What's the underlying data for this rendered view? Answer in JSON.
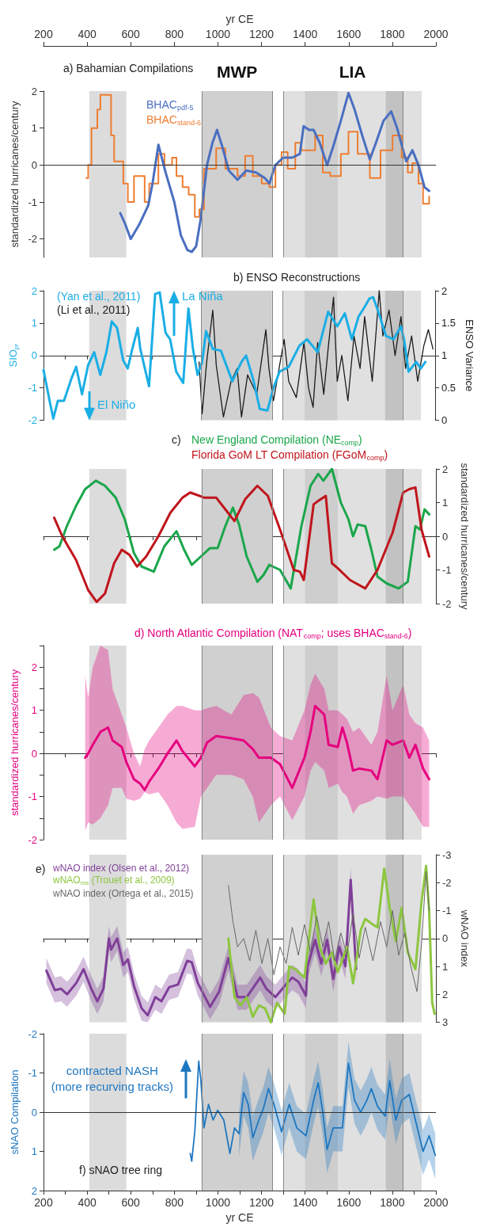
{
  "chart_data": [
    {
      "type": "line",
      "title": "a) Bahamian Compilations",
      "xlim": [
        200,
        2000
      ],
      "xticks": [
        200,
        400,
        600,
        800,
        1000,
        1200,
        1400,
        1600,
        1800,
        2000
      ],
      "xlabel": "yr CE",
      "ylim": [
        -2.5,
        2
      ],
      "yticks": [
        -2,
        -1,
        0,
        1,
        2
      ],
      "ylabel": "standardized hurricanes/century",
      "legend": "top left",
      "marker": "none",
      "bands": [
        {
          "axis": "x",
          "from": 410,
          "to": 580,
          "color": "#dcdcdc"
        },
        {
          "axis": "x",
          "from": 925,
          "to": 1250,
          "label": "MWP",
          "color": "#d0d0d0"
        },
        {
          "axis": "x",
          "from": 1300,
          "to": 1935,
          "label": "LIA",
          "color": "#e0e0e0"
        },
        {
          "axis": "x",
          "from": 1400,
          "to": 1550,
          "color": "#cecece"
        },
        {
          "axis": "x",
          "from": 1770,
          "to": 1850,
          "color": "#c2c2c2"
        }
      ],
      "ref_lines": [
        {
          "axis": "y",
          "value": 0,
          "color": "#333333"
        },
        {
          "axis": "x",
          "value": 925,
          "color": "#888888"
        },
        {
          "axis": "x",
          "value": 1250,
          "color": "#888888"
        },
        {
          "axis": "x",
          "value": 1300,
          "color": "#888888"
        },
        {
          "axis": "x",
          "value": 1850,
          "color": "#888888"
        }
      ],
      "series": [
        {
          "name": "BHAC$_{pdf-5}$",
          "color": "#4a6fc0",
          "x": [
            552,
            575,
            600,
            640,
            680,
            700,
            727,
            760,
            800,
            830,
            860,
            880,
            900,
            920,
            950,
            975,
            996,
            1020,
            1050,
            1090,
            1130,
            1175,
            1215,
            1236,
            1264,
            1299,
            1341,
            1376,
            1393,
            1418,
            1439,
            1467,
            1501,
            1529,
            1564,
            1599,
            1627,
            1662,
            1697,
            1725,
            1760,
            1795,
            1822,
            1864,
            1892,
            1920,
            1948,
            1969
          ],
          "values": [
            -1.3,
            -1.6,
            -2.0,
            -1.6,
            -1.1,
            -0.5,
            0.55,
            -0.2,
            -1.0,
            -1.9,
            -2.3,
            -2.35,
            -2.2,
            -1.5,
            0,
            0.6,
            0.95,
            0.5,
            -0.15,
            -0.4,
            -0.15,
            -0.2,
            -0.35,
            -0.5,
            0,
            0.2,
            0.2,
            0.3,
            1.05,
            0.95,
            0.95,
            0.6,
            0,
            0.5,
            1.2,
            1.95,
            1.5,
            0.8,
            0.15,
            0.6,
            1.2,
            1.45,
            1.0,
            0.1,
            0.4,
            0.0,
            -0.6,
            -0.7
          ]
        },
        {
          "name": "BHAC$_{stand-6}$",
          "type": "step",
          "color": "#ee7d31",
          "x": [
            396,
            405,
            420,
            433,
            447,
            461,
            500,
            510,
            524,
            552,
            566,
            587,
            615,
            643,
            664,
            685,
            727,
            755,
            790,
            810,
            838,
            866,
            894,
            915,
            936,
            992,
            1034,
            1090,
            1125,
            1160,
            1201,
            1236,
            1264,
            1292,
            1320,
            1355,
            1383,
            1446,
            1481,
            1515,
            1564,
            1599,
            1641,
            1697,
            1746,
            1801,
            1843,
            1871,
            1892,
            1920,
            1941,
            1969
          ],
          "values": [
            -0.35,
            0,
            1.0,
            1.0,
            1.5,
            1.9,
            1.9,
            0.8,
            0.1,
            0.1,
            -0.5,
            -1.0,
            -0.3,
            -0.3,
            -1.0,
            -0.5,
            0.3,
            0,
            0.2,
            -0.3,
            -0.6,
            -0.8,
            -1.4,
            -1.2,
            -0.1,
            0.45,
            -0.1,
            -0.3,
            0.25,
            -0.3,
            -0.5,
            -0.6,
            0,
            0.35,
            -0.1,
            0.6,
            0.4,
            0.8,
            -0.2,
            -0.3,
            0.3,
            0.9,
            0.3,
            -0.35,
            0.4,
            0.8,
            0.2,
            -0.2,
            0.05,
            -0.5,
            -1.05,
            -0.85
          ]
        }
      ]
    },
    {
      "type": "line",
      "title": "b) ENSO Reconstructions",
      "xlim": [
        200,
        2000
      ],
      "xticks": [
        200,
        {
          "value": 300,
          "label": null
        },
        400,
        {
          "value": 500,
          "label": null
        },
        600,
        {
          "value": 700,
          "label": null
        },
        800,
        {
          "value": 900,
          "label": null
        },
        1000,
        {
          "value": 1100,
          "label": null
        },
        1200,
        {
          "value": 1300,
          "label": null
        },
        1400,
        {
          "value": 1500,
          "label": null
        },
        1600,
        {
          "value": 1700,
          "label": null
        },
        1800,
        {
          "value": 1900,
          "label": null
        },
        2000
      ],
      "tick_labels": "y",
      "ylim": [
        -2,
        2
      ],
      "yticks": [
        -2,
        -1,
        0,
        1,
        2
      ],
      "ylabel": "SIO$_{pr}$",
      "y2lim": [
        0,
        2
      ],
      "y2ticks": [
        0,
        0.5,
        1,
        1.5,
        2
      ],
      "y2label": "ENSO Variance",
      "legend": "top left",
      "marker": "none",
      "annotations": [
        {
          "text": "La Niña",
          "x": 800,
          "y": 1.85
        },
        {
          "text": "El Niño",
          "x": 411,
          "y": -1.5
        }
      ],
      "bands": [
        {
          "axis": "x",
          "from": 410,
          "to": 580,
          "color": "#dcdcdc"
        },
        {
          "axis": "x",
          "from": 925,
          "to": 1250,
          "color": "#d0d0d0"
        },
        {
          "axis": "x",
          "from": 1300,
          "to": 1935,
          "color": "#e0e0e0"
        },
        {
          "axis": "x",
          "from": 1400,
          "to": 1550,
          "color": "#cecece"
        },
        {
          "axis": "x",
          "from": 1770,
          "to": 1850,
          "color": "#c2c2c2"
        }
      ],
      "ref_lines": [
        {
          "axis": "x",
          "value": 925,
          "color": "#888888"
        },
        {
          "axis": "x",
          "value": 1250,
          "color": "#888888"
        },
        {
          "axis": "x",
          "value": 1300,
          "color": "#888888"
        },
        {
          "axis": "x",
          "value": 1850,
          "color": "#888888"
        }
      ],
      "series": [
        {
          "name": "(Yan et al., 2011)",
          "color": "#1aaee5",
          "x": [
            200,
            231,
            245,
            266,
            294,
            329,
            350,
            377,
            405,
            433,
            461,
            489,
            514,
            538,
            566,
            587,
            608,
            633,
            645,
            685,
            713,
            734,
            761,
            782,
            810,
            842,
            866,
            887,
            908,
            929,
            947,
            978,
            1015,
            1068,
            1110,
            1131,
            1166,
            1194,
            1229,
            1257,
            1285,
            1327,
            1376,
            1411,
            1460,
            1508,
            1550,
            1585,
            1617,
            1648,
            1676,
            1697,
            1715,
            1739,
            1774,
            1809,
            1843,
            1857,
            1878,
            1913,
            1934,
            1955
          ],
          "values": [
            -0.45,
            -1.5,
            -1.95,
            -1.4,
            -1.4,
            -0.7,
            -0.35,
            -1.2,
            -0.3,
            0.1,
            -0.6,
            0.1,
            1.05,
            0.85,
            -0.15,
            -0.4,
            0.2,
            0.85,
            0.2,
            -0.95,
            1.9,
            1.95,
            0.7,
            0.5,
            -0.5,
            -0.85,
            1.45,
            0.2,
            -0.6,
            -0.2,
            0.75,
            0.2,
            0.15,
            -0.8,
            -0.2,
            0,
            -0.8,
            -1.65,
            -1.7,
            -1.0,
            -0.5,
            -0.35,
            0.3,
            0.5,
            0.1,
            1.35,
            0.9,
            1.3,
            0.5,
            1.2,
            1.5,
            1.75,
            1.8,
            1.35,
            0.6,
            0.5,
            0.9,
            0.5,
            -0.5,
            -0.2,
            -0.4,
            -0.2
          ]
        },
        {
          "name": "(Li et al., 2011)",
          "color": "#1a1a1a",
          "axis": "y2",
          "x": [
            915,
            929,
            950,
            978,
            994,
            1027,
            1062,
            1090,
            1110,
            1138,
            1180,
            1222,
            1236,
            1257,
            1306,
            1327,
            1362,
            1397,
            1418,
            1439,
            1460,
            1488,
            1508,
            1533,
            1550,
            1571,
            1599,
            1627,
            1655,
            1676,
            1711,
            1743,
            1760,
            1788,
            1816,
            1843,
            1864,
            1892,
            1920,
            1948,
            1969,
            1990
          ],
          "values": [
            0.9,
            0.1,
            0.9,
            1.7,
            0.85,
            0.05,
            0.6,
            0.8,
            0.05,
            0.7,
            0.4,
            1.4,
            0.8,
            0.3,
            1.25,
            0.6,
            0.35,
            1.2,
            0.5,
            0.2,
            1.2,
            0.4,
            1.1,
            1.9,
            0.6,
            1.0,
            0.3,
            1.3,
            0.8,
            1.6,
            0.6,
            2.0,
            1.3,
            1.7,
            1.0,
            1.6,
            0.8,
            1.3,
            0.6,
            1.15,
            1.4,
            1.1
          ]
        }
      ]
    },
    {
      "type": "line",
      "title": "c)",
      "xlim": [
        200,
        2000
      ],
      "xticks": [
        200,
        {
          "value": 300,
          "label": null
        },
        400,
        {
          "value": 500,
          "label": null
        },
        600,
        {
          "value": 700,
          "label": null
        },
        800,
        {
          "value": 900,
          "label": null
        },
        1000,
        {
          "value": 1100,
          "label": null
        },
        1200,
        {
          "value": 1300,
          "label": null
        },
        1400,
        {
          "value": 1500,
          "label": null
        },
        1600,
        {
          "value": 1700,
          "label": null
        },
        1800,
        {
          "value": 1900,
          "label": null
        },
        2000
      ],
      "tick_labels": "y",
      "y2lim": [
        -2,
        2
      ],
      "y2ticks": [
        -2,
        -1,
        0,
        1,
        2
      ],
      "y2label": "standardized hurricanes/century",
      "legend": "top",
      "marker": "none",
      "bands": [
        {
          "axis": "x",
          "from": 410,
          "to": 580,
          "color": "#dcdcdc"
        },
        {
          "axis": "x",
          "from": 925,
          "to": 1250,
          "color": "#d0d0d0"
        },
        {
          "axis": "x",
          "from": 1300,
          "to": 1935,
          "color": "#e0e0e0"
        },
        {
          "axis": "x",
          "from": 1400,
          "to": 1550,
          "color": "#cecece"
        },
        {
          "axis": "x",
          "from": 1770,
          "to": 1850,
          "color": "#c2c2c2"
        }
      ],
      "ref_lines": [
        {
          "axis": "x",
          "value": 925,
          "color": "#888888"
        },
        {
          "axis": "x",
          "value": 1250,
          "color": "#888888"
        },
        {
          "axis": "x",
          "value": 1300,
          "color": "#888888"
        },
        {
          "axis": "x",
          "value": 1850,
          "color": "#888888"
        }
      ],
      "series": [
        {
          "name": "New England Compilation (NE$_{comp}$)",
          "color": "#1aa64b",
          "axis": "y2",
          "x": [
            249,
            273,
            307,
            349,
            391,
            440,
            482,
            531,
            573,
            615,
            650,
            706,
            754,
            810,
            845,
            880,
            922,
            964,
            999,
            1034,
            1069,
            1097,
            1132,
            1181,
            1209,
            1236,
            1285,
            1334,
            1383,
            1425,
            1460,
            1484,
            1523,
            1564,
            1599,
            1620,
            1641,
            1676,
            1704,
            1732,
            1774,
            1829,
            1871,
            1906,
            1927,
            1948,
            1969
          ],
          "values": [
            -0.4,
            -0.3,
            0.3,
            0.9,
            1.4,
            1.65,
            1.5,
            1.15,
            0.5,
            -0.5,
            -0.9,
            -1.05,
            -0.3,
            0.15,
            -0.4,
            -0.85,
            -0.6,
            -0.35,
            -0.35,
            0.3,
            0.85,
            0.35,
            -0.6,
            -1.35,
            -1.15,
            -0.85,
            -1.0,
            -1.55,
            0.3,
            1.5,
            1.85,
            1.65,
            2.0,
            1.0,
            0.5,
            0,
            0.35,
            0.3,
            -0.4,
            -1.2,
            -1.4,
            -1.55,
            -1.35,
            0.3,
            0.2,
            0.8,
            0.65
          ]
        },
        {
          "name": "Florida GoM LT Compilation (FGoM$_{comp}$)",
          "color": "#c0141c",
          "axis": "y2",
          "x": [
            249,
            286,
            349,
            405,
            444,
            482,
            524,
            559,
            594,
            629,
            671,
            727,
            782,
            838,
            873,
            936,
            992,
            1034,
            1076,
            1125,
            1181,
            1229,
            1285,
            1348,
            1376,
            1394,
            1439,
            1460,
            1495,
            1523,
            1550,
            1606,
            1676,
            1732,
            1801,
            1850,
            1878,
            1906,
            1934,
            1969
          ],
          "values": [
            0.55,
            0,
            -0.7,
            -1.6,
            -1.95,
            -1.7,
            -0.8,
            -0.4,
            -0.55,
            -0.9,
            -0.6,
            0,
            0.7,
            1.15,
            1.3,
            1.15,
            1.15,
            0.8,
            0.45,
            1.1,
            1.5,
            1.2,
            0.2,
            -1.0,
            -1.05,
            -1.3,
            0.95,
            1.05,
            1.2,
            -0.8,
            -0.95,
            -1.3,
            -1.55,
            -1.0,
            0.1,
            1.3,
            1.4,
            1.45,
            0.2,
            -0.6
          ]
        }
      ]
    },
    {
      "type": "line",
      "title": "d) North Atlantic Compilation (NAT$_{comp}$; uses BHAC$_{stand-6}$)",
      "xlim": [
        200,
        2000
      ],
      "xticks": [
        200,
        {
          "value": 300,
          "label": null
        },
        400,
        {
          "value": 500,
          "label": null
        },
        600,
        {
          "value": 700,
          "label": null
        },
        800,
        {
          "value": 900,
          "label": null
        },
        1000,
        {
          "value": 1100,
          "label": null
        },
        1200,
        {
          "value": 1300,
          "label": null
        },
        1400,
        {
          "value": 1500,
          "label": null
        },
        1600,
        {
          "value": 1700,
          "label": null
        },
        1800,
        {
          "value": 1900,
          "label": null
        },
        2000
      ],
      "tick_labels": "y",
      "ylim": [
        -2,
        2.5
      ],
      "yticks": [
        -2,
        {
          "value": -1.5,
          "label": null
        },
        -1,
        {
          "value": -0.5,
          "label": null
        },
        0,
        {
          "value": 0.5,
          "label": null
        },
        1,
        {
          "value": 1.5,
          "label": null
        },
        2,
        {
          "value": 2.5,
          "label": null
        }
      ],
      "ylabel": "standardized hurricanes/century",
      "marker": "none",
      "bands": [
        {
          "axis": "x",
          "from": 410,
          "to": 580,
          "color": "#dcdcdc"
        },
        {
          "axis": "x",
          "from": 925,
          "to": 1250,
          "color": "#d0d0d0"
        },
        {
          "axis": "x",
          "from": 1300,
          "to": 1935,
          "color": "#e0e0e0"
        },
        {
          "axis": "x",
          "from": 1400,
          "to": 1550,
          "color": "#cecece"
        },
        {
          "axis": "x",
          "from": 1770,
          "to": 1850,
          "color": "#c2c2c2"
        }
      ],
      "ref_lines": [
        {
          "axis": "x",
          "value": 925,
          "color": "#888888"
        },
        {
          "axis": "x",
          "value": 1250,
          "color": "#888888"
        },
        {
          "axis": "x",
          "value": 1300,
          "color": "#888888"
        },
        {
          "axis": "x",
          "value": 1850,
          "color": "#888888"
        }
      ],
      "series": [
        {
          "color": "#e5007e",
          "x": [
            391,
            405,
            426,
            461,
            496,
            517,
            559,
            580,
            615,
            643,
            664,
            685,
            727,
            769,
            810,
            838,
            894,
            922,
            950,
            992,
            1062,
            1118,
            1160,
            1188,
            1243,
            1285,
            1341,
            1397,
            1425,
            1446,
            1488,
            1508,
            1550,
            1571,
            1592,
            1620,
            1648,
            1704,
            1732,
            1774,
            1801,
            1850,
            1878,
            1906,
            1941,
            1969
          ],
          "values": [
            -0.1,
            0,
            0.2,
            0.5,
            0.6,
            0.3,
            0.15,
            -0.2,
            -0.6,
            -0.7,
            -0.85,
            -0.65,
            -0.35,
            0,
            0.3,
            0.05,
            -0.3,
            -0.1,
            0.25,
            0.4,
            0.35,
            0.3,
            0.1,
            -0.1,
            -0.1,
            -0.25,
            -0.8,
            -0.1,
            0.5,
            1.1,
            0.9,
            0.2,
            0.15,
            0.6,
            0.25,
            -0.4,
            -0.35,
            -0.4,
            -0.6,
            0.3,
            0.2,
            0.3,
            -0.1,
            0.2,
            -0.35,
            -0.6
          ],
          "lower": [
            -1.8,
            -1.6,
            -1.65,
            -1.5,
            -1.2,
            -0.8,
            -0.8,
            -1.05,
            -1.1,
            -1.05,
            -0.9,
            -0.95,
            -0.9,
            -1.2,
            -1.6,
            -1.75,
            -1.7,
            -1.0,
            -0.8,
            -0.5,
            -0.5,
            -0.6,
            -1.0,
            -1.6,
            -1.2,
            -1.0,
            -1.55,
            -1.0,
            -0.4,
            -0.2,
            -0.4,
            -0.8,
            -0.7,
            -0.9,
            -1.0,
            -1.4,
            -1.2,
            -1.1,
            -1.0,
            -1.05,
            -1.0,
            -1.0,
            -1.2,
            -1.4,
            -1.7,
            -1.7
          ],
          "upper": [
            1.8,
            1.3,
            2.0,
            2.5,
            2.4,
            1.5,
            0.9,
            0.6,
            0.0,
            -0.3,
            0.1,
            0.3,
            0.6,
            0.9,
            1.1,
            1.1,
            1.0,
            1.0,
            1.05,
            1.1,
            0.9,
            1.35,
            1.4,
            1.3,
            0.6,
            0.4,
            0.3,
            1.0,
            1.6,
            1.85,
            1.5,
            1.0,
            1.0,
            0.9,
            0.8,
            0.5,
            0.6,
            0.2,
            0.5,
            1.8,
            1.0,
            1.6,
            0.9,
            0.7,
            0.6,
            0.3
          ]
        }
      ]
    },
    {
      "type": "line",
      "title": "e)",
      "xlim": [
        200,
        2000
      ],
      "xticks": [
        200,
        {
          "value": 300,
          "label": null
        },
        400,
        {
          "value": 500,
          "label": null
        },
        600,
        {
          "value": 700,
          "label": null
        },
        800,
        {
          "value": 900,
          "label": null
        },
        1000,
        {
          "value": 1100,
          "label": null
        },
        1200,
        {
          "value": 1300,
          "label": null
        },
        1400,
        {
          "value": 1500,
          "label": null
        },
        1600,
        {
          "value": 1700,
          "label": null
        },
        1800,
        {
          "value": 1900,
          "label": null
        },
        2000
      ],
      "tick_labels": "y",
      "y2lim": [
        3,
        -3
      ],
      "y2ticks": [
        -3,
        -2,
        -1,
        0,
        1,
        2,
        3
      ],
      "y2label": "wNAO index",
      "legend": "top left",
      "marker": "none",
      "bands": [
        {
          "axis": "x",
          "from": 410,
          "to": 580,
          "color": "#dcdcdc"
        },
        {
          "axis": "x",
          "from": 925,
          "to": 1250,
          "color": "#d0d0d0"
        },
        {
          "axis": "x",
          "from": 1300,
          "to": 1935,
          "color": "#e0e0e0"
        },
        {
          "axis": "x",
          "from": 1400,
          "to": 1550,
          "color": "#cecece"
        },
        {
          "axis": "x",
          "from": 1770,
          "to": 1850,
          "color": "#c2c2c2"
        }
      ],
      "ref_lines": [
        {
          "axis": "x",
          "value": 925,
          "color": "#888888"
        },
        {
          "axis": "x",
          "value": 1250,
          "color": "#888888"
        },
        {
          "axis": "x",
          "value": 1300,
          "color": "#888888"
        },
        {
          "axis": "x",
          "value": 1850,
          "color": "#888888"
        }
      ],
      "series": [
        {
          "name": "wNAO index (Olsen et al., 2012)",
          "color": "#7f3f98",
          "axis": "y2",
          "x": [
            213,
            252,
            280,
            308,
            350,
            384,
            419,
            447,
            475,
            500,
            510,
            538,
            566,
            587,
            615,
            650,
            678,
            713,
            741,
            776,
            817,
            859,
            880,
            908,
            964,
            1006,
            1048,
            1090,
            1132,
            1194,
            1222,
            1264,
            1306,
            1341,
            1369,
            1404,
            1411,
            1446,
            1474,
            1501,
            1529,
            1557,
            1585,
            1609,
            1634
          ],
          "values": [
            1.15,
            1.85,
            1.8,
            2.0,
            1.6,
            1.1,
            1.8,
            2.25,
            1.8,
            0,
            0.4,
            0,
            0.95,
            0.75,
            1.7,
            2.5,
            2.75,
            2.1,
            2.25,
            1.75,
            1.65,
            0.8,
            0.85,
            1.6,
            2.45,
            1.9,
            0.7,
            2.1,
            2.1,
            1.4,
            1.8,
            2.1,
            1.7,
            1.4,
            1.55,
            2.05,
            1.0,
            0.05,
            0.9,
            0.05,
            1.45,
            0.3,
            1.0,
            -2.1,
            1.1
          ],
          "lower": [
            0.7,
            1.4,
            1.35,
            1.55,
            1.15,
            0.65,
            1.35,
            1.8,
            1.35,
            -0.45,
            -0.05,
            -0.45,
            0.5,
            0.3,
            1.25,
            2.05,
            2.3,
            1.65,
            1.8,
            1.3,
            1.2,
            0.35,
            0.4,
            1.15,
            2.0,
            1.45,
            0.25,
            1.65,
            1.65,
            0.95,
            1.35,
            1.65,
            1.25,
            0.95,
            1.1,
            1.6,
            0.55,
            -0.4,
            0.45,
            -0.4,
            1.0,
            -0.15,
            0.55,
            -2.55,
            0.65
          ],
          "upper": [
            1.6,
            2.3,
            2.25,
            2.45,
            2.05,
            1.55,
            2.25,
            2.7,
            2.25,
            0.45,
            0.85,
            0.45,
            1.4,
            1.2,
            2.15,
            2.95,
            3.0,
            2.55,
            2.7,
            2.2,
            2.1,
            1.25,
            1.3,
            2.05,
            2.9,
            2.35,
            1.15,
            2.55,
            2.55,
            1.85,
            2.25,
            2.55,
            2.15,
            1.85,
            2.0,
            2.5,
            1.45,
            0.5,
            1.35,
            0.5,
            1.9,
            0.75,
            1.45,
            -1.65,
            1.55
          ]
        },
        {
          "name": "wNAO$_{ms}$ (Trouet et al., 2009)",
          "color": "#8dc63f",
          "axis": "y2",
          "x": [
            1048,
            1076,
            1104,
            1132,
            1160,
            1188,
            1216,
            1243,
            1271,
            1306,
            1327,
            1355,
            1397,
            1439,
            1467,
            1495,
            1523,
            1550,
            1592,
            1620,
            1655,
            1676,
            1711,
            1732,
            1763,
            1788,
            1816,
            1843,
            1871,
            1906,
            1934,
            1955,
            1969,
            1983,
            1994
          ],
          "values": [
            0,
            2.1,
            2.4,
            2.1,
            2.8,
            2.4,
            2.5,
            3.0,
            2.3,
            2.7,
            1.0,
            1.1,
            1.4,
            -1.4,
            0.3,
            0.9,
            0.5,
            1.2,
            0.3,
            1.6,
            -0.3,
            -0.7,
            -0.5,
            -0.4,
            -2.5,
            -1.1,
            0.1,
            -1.1,
            0.5,
            1.1,
            -1.3,
            -2.6,
            -1.0,
            2.3,
            2.7
          ]
        },
        {
          "name": "wNAO index (Ortega et al., 2015)",
          "color": "#666666",
          "axis": "y2",
          "x": [
            1048,
            1069,
            1090,
            1118,
            1146,
            1174,
            1202,
            1229,
            1257,
            1285,
            1313,
            1341,
            1369,
            1397,
            1425,
            1453,
            1481,
            1508,
            1536,
            1564,
            1592,
            1620,
            1648,
            1676,
            1711,
            1746,
            1774,
            1801,
            1829,
            1857,
            1885,
            1913,
            1934,
            1955,
            1969
          ],
          "values": [
            -1.9,
            -0.6,
            0.3,
            0,
            0.8,
            -0.3,
            0.9,
            0,
            1.3,
            0.3,
            0.9,
            -0.4,
            0.6,
            -0.5,
            0.5,
            -0.8,
            0.3,
            -0.6,
            0.8,
            -0.2,
            0.6,
            -0.9,
            0.7,
            -0.4,
            0.8,
            -0.6,
            0.3,
            -1.0,
            0.6,
            -0.2,
            1.0,
            1.9,
            0.2,
            -2.4,
            -1.0
          ]
        }
      ]
    },
    {
      "type": "line",
      "title": "f) sNAO tree ring",
      "xlim": [
        200,
        2000
      ],
      "xticks": [
        200,
        {
          "value": 300,
          "label": null
        },
        400,
        {
          "value": 500,
          "label": null
        },
        600,
        {
          "value": 700,
          "label": null
        },
        800,
        {
          "value": 900,
          "label": null
        },
        1000,
        {
          "value": 1100,
          "label": null
        },
        1200,
        {
          "value": 1300,
          "label": null
        },
        1400,
        {
          "value": 1500,
          "label": null
        },
        1600,
        {
          "value": 1700,
          "label": null
        },
        1800,
        {
          "value": 1900,
          "label": null
        },
        2000
      ],
      "xlabel": "yr CE",
      "ylim": [
        2,
        -2
      ],
      "yticks": [
        -2,
        -1,
        0,
        1,
        2
      ],
      "ylabel": "sNAO Compilation",
      "marker": "none",
      "annotations": [
        "contracted NASH\n(more recurving tracks)"
      ],
      "bands": [
        {
          "axis": "x",
          "from": 410,
          "to": 580,
          "color": "#dcdcdc"
        },
        {
          "axis": "x",
          "from": 925,
          "to": 1250,
          "color": "#d0d0d0"
        },
        {
          "axis": "x",
          "from": 1300,
          "to": 1935,
          "color": "#e0e0e0"
        },
        {
          "axis": "x",
          "from": 1400,
          "to": 1550,
          "color": "#cecece"
        },
        {
          "axis": "x",
          "from": 1770,
          "to": 1850,
          "color": "#c2c2c2"
        }
      ],
      "ref_lines": [
        {
          "axis": "y",
          "value": 0,
          "color": "#333333"
        },
        {
          "axis": "x",
          "value": 925,
          "color": "#888888"
        },
        {
          "axis": "x",
          "value": 1250,
          "color": "#888888"
        },
        {
          "axis": "x",
          "value": 1300,
          "color": "#888888"
        },
        {
          "axis": "x",
          "value": 1850,
          "color": "#888888"
        }
      ],
      "series": [
        {
          "color": "#1f77c0",
          "x": [
            873,
            880,
            894,
            912,
            922,
            936,
            957,
            978,
            999,
            1027,
            1055,
            1076,
            1097,
            1118,
            1139,
            1160,
            1188,
            1209,
            1232,
            1257,
            1292,
            1327,
            1362,
            1404,
            1439,
            1460,
            1481,
            1501,
            1529,
            1571,
            1599,
            1627,
            1655,
            1683,
            1704,
            1732,
            1767,
            1788,
            1816,
            1843,
            1878,
            1906,
            1941,
            1969,
            1997
          ],
          "values": [
            1.05,
            1.25,
            0.5,
            -1.3,
            -0.8,
            0.4,
            -0.2,
            0.2,
            -0.05,
            0.2,
            1.05,
            0.4,
            0.55,
            -0.5,
            -0.2,
            0.65,
            0.2,
            -0.1,
            -0.6,
            -0.2,
            0.5,
            -0.2,
            0.4,
            0.6,
            -0.3,
            -0.75,
            0,
            0.95,
            0.4,
            0.4,
            -1.25,
            -0.3,
            0,
            -0.3,
            -0.6,
            -0.15,
            0.1,
            -0.8,
            0.2,
            -0.3,
            -0.45,
            0.2,
            1.0,
            0.6,
            1.1
          ],
          "lower": [
            null,
            null,
            null,
            null,
            null,
            null,
            null,
            null,
            null,
            null,
            null,
            null,
            0,
            -1.05,
            -0.75,
            0.1,
            -0.35,
            -0.65,
            -1.15,
            -0.75,
            -0.05,
            -0.75,
            -0.15,
            0.05,
            -0.85,
            -1.3,
            -0.55,
            0.4,
            -0.15,
            -0.15,
            -1.8,
            -0.85,
            -0.55,
            -0.85,
            -1.15,
            -0.7,
            -0.45,
            -1.35,
            -0.35,
            -0.85,
            -1.0,
            -0.35,
            0.45,
            0.05,
            0.55
          ],
          "upper": [
            null,
            null,
            null,
            null,
            null,
            null,
            null,
            null,
            null,
            null,
            null,
            null,
            1.15,
            0.1,
            0.4,
            1.25,
            0.8,
            0.5,
            0.0,
            0.4,
            1.1,
            0.4,
            1.0,
            1.2,
            0.3,
            -0.15,
            0.6,
            1.55,
            1.0,
            1.0,
            -0.65,
            0.3,
            0.6,
            0.3,
            0.0,
            0.45,
            0.7,
            -0.2,
            0.8,
            0.3,
            0.15,
            0.8,
            1.6,
            1.2,
            1.7
          ]
        }
      ]
    }
  ]
}
